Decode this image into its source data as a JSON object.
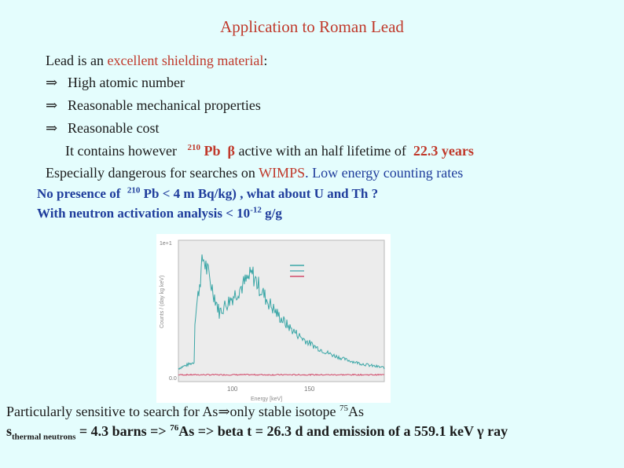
{
  "title": "Application to Roman Lead",
  "intro": {
    "prefix": "Lead is an ",
    "highlight": "excellent shielding material",
    "suffix": ":"
  },
  "bullets": [
    {
      "arrow": "⇒",
      "text": "High atomic number"
    },
    {
      "arrow": "⇒",
      "text": "Reasonable mechanical properties"
    },
    {
      "arrow": "⇒",
      "text": "Reasonable cost"
    }
  ],
  "contains": {
    "prefix": "It contains however",
    "mass": "210",
    "element": "Pb",
    "beta": "β",
    "middle": " active  with an half  lifetime of",
    "value": "22.3 years"
  },
  "dangerous": {
    "prefix": "Especially dangerous for  searches on ",
    "wimps": "WIMPS",
    "suffix": ".  Low energy counting rates"
  },
  "no_presence": {
    "prefix": "No presence of ",
    "mass": "210",
    "rest": " Pb < 4 m Bq/kg) , what about U and Th ?"
  },
  "neutron": {
    "prefix": "With neutron activation analysis  < 10",
    "exp": "-12",
    "suffix": "   g/g"
  },
  "figure": {
    "legend": [
      "",
      "",
      ""
    ],
    "legend_colors": [
      "#3aa6a6",
      "#5fb0b8",
      "#d24a6a"
    ],
    "tick_y": "1e+1",
    "tick_y_low": "0.0",
    "tick_x": "100",
    "tick_x2": "150",
    "xlabel": "Energy   [keV]",
    "ylabel": "Counts / (day kg keV)"
  },
  "sensitive": {
    "prefix": "Particularly sensitive to search for   As",
    "arrow": "⇒",
    "middle": "only stable isotope   ",
    "mass": "75",
    "element": "As"
  },
  "thermal": {
    "sigma": "s",
    "sub": "thermal neutrons",
    "part1": " = 4.3 barns => ",
    "mass": "76",
    "part2": "As => beta  t = 26.3 d and emission of a  559.1 keV  ",
    "gamma": "γ",
    "part3": " ray"
  }
}
